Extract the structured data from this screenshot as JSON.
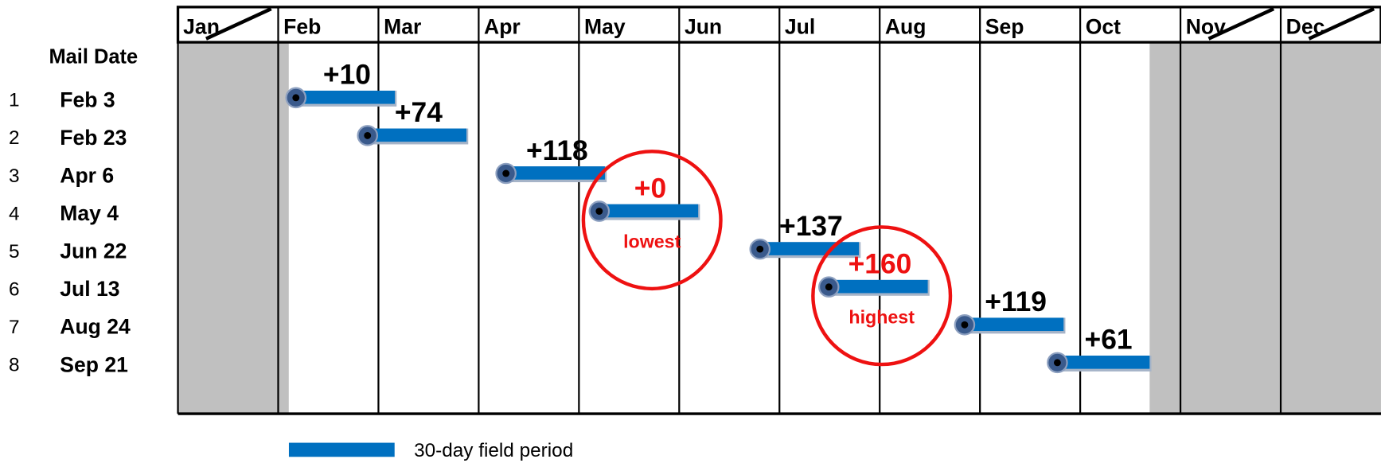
{
  "chart_data": {
    "type": "gantt",
    "categories": [
      "Jan",
      "Feb",
      "Mar",
      "Apr",
      "May",
      "Jun",
      "Jul",
      "Aug",
      "Sep",
      "Oct",
      "Nov",
      "Dec"
    ],
    "shaded_months": [
      0,
      10,
      11
    ],
    "row_header": "Mail Date",
    "row_numbers": [
      1,
      2,
      3,
      4,
      5,
      6,
      7,
      8
    ],
    "x": [
      "Feb 3",
      "Feb 23",
      "Apr 6",
      "May 4",
      "Jun 22",
      "Jul 13",
      "Aug 24",
      "Sep 21"
    ],
    "values": [
      10,
      74,
      118,
      0,
      137,
      160,
      119,
      61
    ],
    "value_labels": [
      "+10",
      "+74",
      "+118",
      "+0",
      "+137",
      "+160",
      "+119",
      "+61"
    ],
    "color": "#0070c0",
    "annotations": [
      {
        "index": 3,
        "text": "lowest"
      },
      {
        "index": 5,
        "text": "highest"
      }
    ],
    "highlight_color": "#ee1111",
    "legend": "30-day field period"
  }
}
